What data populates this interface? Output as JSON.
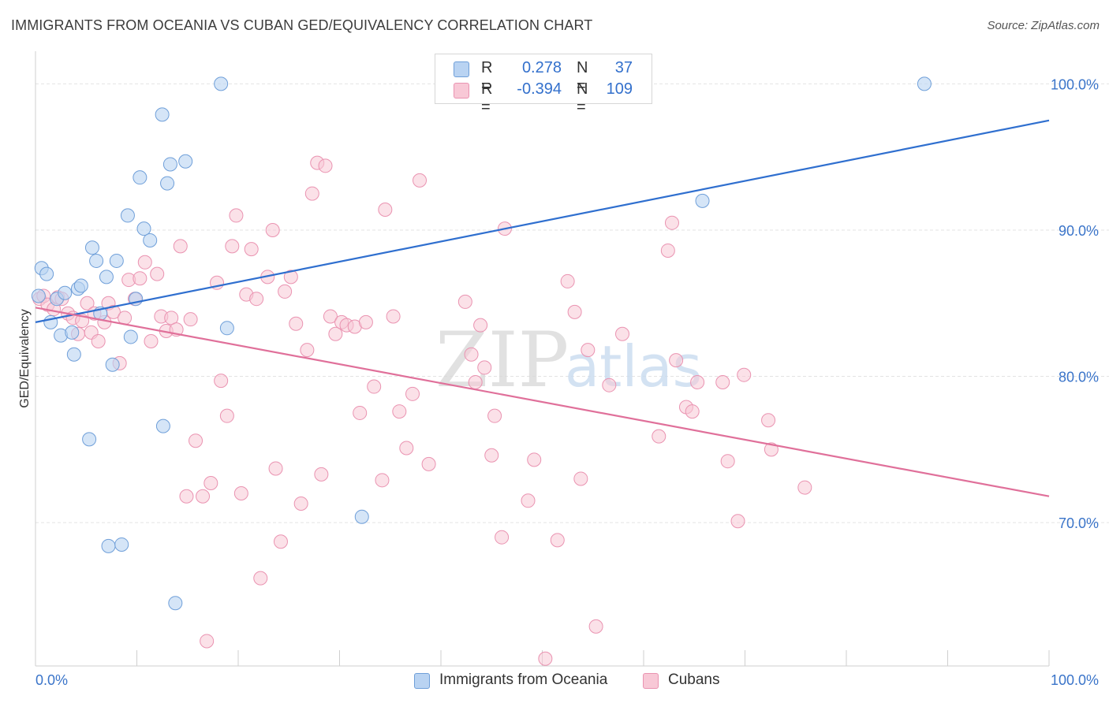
{
  "title": "IMMIGRANTS FROM OCEANIA VS CUBAN GED/EQUIVALENCY CORRELATION CHART",
  "source": "Source: ZipAtlas.com",
  "watermark": {
    "zip": "ZIP",
    "atlas": "atlas"
  },
  "colors": {
    "blue_fill": "#b9d3f2",
    "blue_stroke": "#6f9fd9",
    "blue_line": "#2f6fcf",
    "pink_fill": "#f8c8d6",
    "pink_stroke": "#ea93b1",
    "pink_line": "#e0709a",
    "axis_text": "#3a74c9",
    "grid": "#e3e3e3"
  },
  "legend": {
    "rows": [
      {
        "series": "Immigrants from Oceania",
        "r_label": "R =",
        "r_value": "0.278",
        "n_label": "N =",
        "n_value": "37"
      },
      {
        "series": "Cubans",
        "r_label": "R =",
        "r_value": "-0.394",
        "n_label": "N =",
        "n_value": "109"
      }
    ]
  },
  "chart_data": {
    "type": "scatter",
    "title": "IMMIGRANTS FROM OCEANIA VS CUBAN GED/EQUIVALENCY CORRELATION CHART",
    "xlabel": "",
    "ylabel": "GED/Equivalency",
    "x_tick_labels": [
      "0.0%",
      "100.0%"
    ],
    "y_tick_labels": [
      "100.0%",
      "90.0%",
      "80.0%",
      "70.0%"
    ],
    "y_ticks": [
      100,
      90,
      80,
      70
    ],
    "xlim": [
      0,
      100
    ],
    "ylim": [
      60.2,
      102.5
    ],
    "grid": true,
    "series": [
      {
        "name": "Immigrants from Oceania",
        "r": 0.278,
        "n": 37,
        "trend": {
          "x": [
            0,
            100
          ],
          "y": [
            83.7,
            97.5
          ]
        },
        "points": [
          [
            0.3,
            85.5
          ],
          [
            0.6,
            87.4
          ],
          [
            1.1,
            87.0
          ],
          [
            1.5,
            83.7
          ],
          [
            2.1,
            85.3
          ],
          [
            2.5,
            82.8
          ],
          [
            2.9,
            85.7
          ],
          [
            3.6,
            83.0
          ],
          [
            3.8,
            81.5
          ],
          [
            4.2,
            86.0
          ],
          [
            4.5,
            86.2
          ],
          [
            5.3,
            75.7
          ],
          [
            5.6,
            88.8
          ],
          [
            6.0,
            87.9
          ],
          [
            6.4,
            84.3
          ],
          [
            7.0,
            86.8
          ],
          [
            7.2,
            68.4
          ],
          [
            7.6,
            80.8
          ],
          [
            8.0,
            87.9
          ],
          [
            8.5,
            68.5
          ],
          [
            9.1,
            91.0
          ],
          [
            9.4,
            82.7
          ],
          [
            9.9,
            85.3
          ],
          [
            10.3,
            93.6
          ],
          [
            10.7,
            90.1
          ],
          [
            11.3,
            89.3
          ],
          [
            12.5,
            97.9
          ],
          [
            12.6,
            76.6
          ],
          [
            13.0,
            93.2
          ],
          [
            13.3,
            94.5
          ],
          [
            13.8,
            64.5
          ],
          [
            14.8,
            94.7
          ],
          [
            18.3,
            100.0
          ],
          [
            18.9,
            83.3
          ],
          [
            32.2,
            70.4
          ],
          [
            65.8,
            92.0
          ],
          [
            87.7,
            100.0
          ]
        ]
      },
      {
        "name": "Cubans",
        "r": -0.394,
        "n": 109,
        "trend": {
          "x": [
            0,
            100
          ],
          "y": [
            84.7,
            71.8
          ]
        },
        "points": [
          [
            0.4,
            85.3
          ],
          [
            0.8,
            85.5
          ],
          [
            1.2,
            84.9
          ],
          [
            1.8,
            84.6
          ],
          [
            2.2,
            85.4
          ],
          [
            2.6,
            85.3
          ],
          [
            3.2,
            84.3
          ],
          [
            3.7,
            84.0
          ],
          [
            4.2,
            82.9
          ],
          [
            4.6,
            83.8
          ],
          [
            5.1,
            85.0
          ],
          [
            5.5,
            83.0
          ],
          [
            5.8,
            84.3
          ],
          [
            6.2,
            82.4
          ],
          [
            6.8,
            83.7
          ],
          [
            7.2,
            85.0
          ],
          [
            7.7,
            84.4
          ],
          [
            8.3,
            80.9
          ],
          [
            8.8,
            84.0
          ],
          [
            9.2,
            86.6
          ],
          [
            9.8,
            85.3
          ],
          [
            10.3,
            86.7
          ],
          [
            10.8,
            87.8
          ],
          [
            11.4,
            82.4
          ],
          [
            12.0,
            87.0
          ],
          [
            12.4,
            84.1
          ],
          [
            12.9,
            83.1
          ],
          [
            13.4,
            84.0
          ],
          [
            13.9,
            83.2
          ],
          [
            14.3,
            88.9
          ],
          [
            14.9,
            71.8
          ],
          [
            15.3,
            83.9
          ],
          [
            15.8,
            75.6
          ],
          [
            16.5,
            71.8
          ],
          [
            16.9,
            61.9
          ],
          [
            17.3,
            72.7
          ],
          [
            17.9,
            86.4
          ],
          [
            18.3,
            79.7
          ],
          [
            18.9,
            77.3
          ],
          [
            19.4,
            88.9
          ],
          [
            19.8,
            91.0
          ],
          [
            20.3,
            72.0
          ],
          [
            20.8,
            85.6
          ],
          [
            21.3,
            88.7
          ],
          [
            21.8,
            85.3
          ],
          [
            22.2,
            66.2
          ],
          [
            22.9,
            86.8
          ],
          [
            23.4,
            90.0
          ],
          [
            23.7,
            73.7
          ],
          [
            24.2,
            68.7
          ],
          [
            24.6,
            85.8
          ],
          [
            25.2,
            86.8
          ],
          [
            25.7,
            83.6
          ],
          [
            26.2,
            71.3
          ],
          [
            26.8,
            81.8
          ],
          [
            27.3,
            92.5
          ],
          [
            27.8,
            94.6
          ],
          [
            28.2,
            73.3
          ],
          [
            28.6,
            94.4
          ],
          [
            29.1,
            84.1
          ],
          [
            29.6,
            82.9
          ],
          [
            30.2,
            83.7
          ],
          [
            30.7,
            83.5
          ],
          [
            31.5,
            83.4
          ],
          [
            32.0,
            77.5
          ],
          [
            32.6,
            83.7
          ],
          [
            33.4,
            79.3
          ],
          [
            34.2,
            72.9
          ],
          [
            34.5,
            91.4
          ],
          [
            35.3,
            84.1
          ],
          [
            35.9,
            77.6
          ],
          [
            36.6,
            75.1
          ],
          [
            37.2,
            78.8
          ],
          [
            37.9,
            93.4
          ],
          [
            38.8,
            74.0
          ],
          [
            42.4,
            85.1
          ],
          [
            43.0,
            81.5
          ],
          [
            43.4,
            79.6
          ],
          [
            43.9,
            83.5
          ],
          [
            44.3,
            80.6
          ],
          [
            45.0,
            74.6
          ],
          [
            45.3,
            77.3
          ],
          [
            46.0,
            69.0
          ],
          [
            46.3,
            90.1
          ],
          [
            48.6,
            71.5
          ],
          [
            49.2,
            74.3
          ],
          [
            50.3,
            60.7
          ],
          [
            51.5,
            68.8
          ],
          [
            52.5,
            86.5
          ],
          [
            53.2,
            84.4
          ],
          [
            53.8,
            73.0
          ],
          [
            54.5,
            81.8
          ],
          [
            55.3,
            62.9
          ],
          [
            56.6,
            79.4
          ],
          [
            57.9,
            82.9
          ],
          [
            61.5,
            75.9
          ],
          [
            62.4,
            88.6
          ],
          [
            62.8,
            90.5
          ],
          [
            63.2,
            81.1
          ],
          [
            64.2,
            77.9
          ],
          [
            64.8,
            77.6
          ],
          [
            65.3,
            79.6
          ],
          [
            67.8,
            79.6
          ],
          [
            68.3,
            74.2
          ],
          [
            69.3,
            70.1
          ],
          [
            69.9,
            80.1
          ],
          [
            72.3,
            77.0
          ],
          [
            72.6,
            75.0
          ],
          [
            75.9,
            72.4
          ]
        ]
      }
    ]
  }
}
